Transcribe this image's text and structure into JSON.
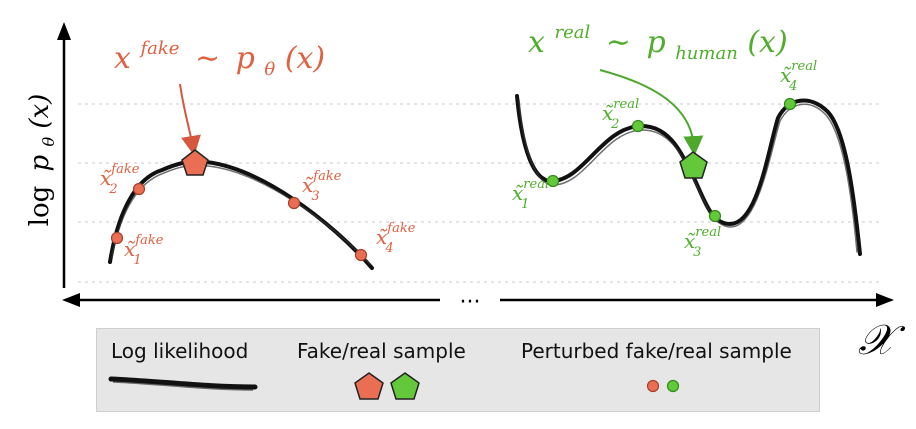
{
  "y_axis_label": {
    "prefix": "log",
    "func": "p",
    "sub": "θ",
    "arg": "(x)"
  },
  "x_axis_label": "𝒳",
  "ellipsis": "···",
  "fake": {
    "title": {
      "base": "x",
      "sup": "fake",
      "rest": "∼",
      "func": "p",
      "sub": "θ",
      "arg": "(x)"
    },
    "color": "#e8735a",
    "stroke": "#b2432c",
    "perturbed": [
      {
        "base": "x̃",
        "sup": "fake",
        "sub": "1"
      },
      {
        "base": "x̃",
        "sup": "fake",
        "sub": "2"
      },
      {
        "base": "x̃",
        "sup": "fake",
        "sub": "3"
      },
      {
        "base": "x̃",
        "sup": "fake",
        "sub": "4"
      }
    ]
  },
  "real": {
    "title": {
      "base": "x",
      "sup": "real",
      "rest": "∼",
      "func": "p",
      "sub": "human",
      "arg": "(x)"
    },
    "color": "#5fc43b",
    "stroke": "#2f8a17",
    "perturbed": [
      {
        "base": "x̃",
        "sup": "real",
        "sub": "1"
      },
      {
        "base": "x̃",
        "sup": "real",
        "sub": "2"
      },
      {
        "base": "x̃",
        "sup": "real",
        "sub": "3"
      },
      {
        "base": "x̃",
        "sup": "real",
        "sub": "4"
      }
    ]
  },
  "legend": {
    "log_likelihood": "Log likelihood",
    "sample": "Fake/real sample",
    "perturbed": "Perturbed fake/real sample"
  }
}
